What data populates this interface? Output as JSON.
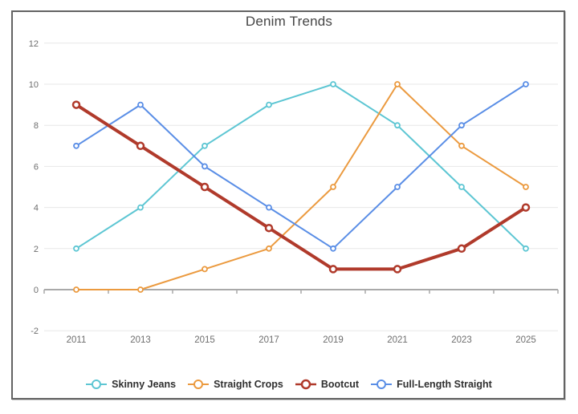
{
  "chart_data": {
    "type": "line",
    "title": "Denim Trends",
    "x": [
      "2011",
      "2013",
      "2015",
      "2017",
      "2019",
      "2021",
      "2023",
      "2025"
    ],
    "series": [
      {
        "name": "Skinny Jeans",
        "color": "#5DC6D3",
        "line_width": 2,
        "values": [
          2,
          4,
          7,
          9,
          10,
          8,
          5,
          2
        ]
      },
      {
        "name": "Straight Crops",
        "color": "#EB9A3F",
        "line_width": 2,
        "values": [
          0,
          0,
          1,
          2,
          5,
          10,
          7,
          5
        ]
      },
      {
        "name": "Bootcut",
        "color": "#B03A2B",
        "line_width": 4,
        "values": [
          9,
          7,
          5,
          3,
          1,
          1,
          2,
          4
        ]
      },
      {
        "name": "Full-Length Straight",
        "color": "#5A8EE6",
        "line_width": 2,
        "values": [
          7,
          9,
          6,
          4,
          2,
          5,
          8,
          10
        ]
      }
    ],
    "xlabel": "",
    "ylabel": "",
    "ylim": [
      -2,
      12
    ],
    "yticks": [
      -2,
      0,
      2,
      4,
      6,
      8,
      10,
      12
    ],
    "grid": true,
    "marker": "circle-open",
    "legend_position": "bottom"
  },
  "style_colors": {
    "grid": "#E7E7E7",
    "axis": "#A9A9A9",
    "tick_label": "#6E6E6E",
    "title": "#454545",
    "legend_text": "#303030",
    "frame_border": "#636363",
    "background": "#FFFFFF",
    "marker_fill": "#FFFFFF"
  }
}
